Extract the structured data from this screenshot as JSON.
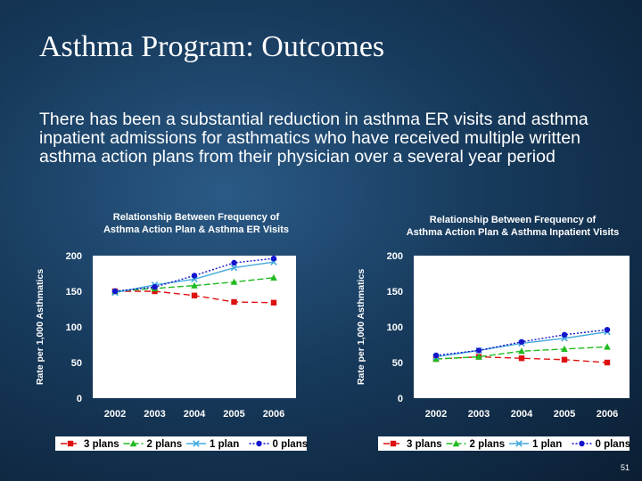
{
  "slide": {
    "title": "Asthma Program: Outcomes",
    "intro": "There has been a substantial reduction in asthma ER visits and asthma inpatient admissions for asthmatics who have received multiple written asthma action plans from their physician over a several year period",
    "page_number": "51"
  },
  "colors": {
    "3 plans": "#dd1111",
    "2 plans": "#20bb20",
    "1 plan": "#44aadd",
    "0 plans": "#1414cc"
  },
  "chart_data": [
    {
      "type": "line",
      "title_lines": [
        "Relationship Between Frequency of",
        "Asthma Action Plan & Asthma ER Visits"
      ],
      "ylabel": "Rate per 1,000 Asthmatics",
      "xlabel": "",
      "categories": [
        "2002",
        "2003",
        "2004",
        "2005",
        "2006"
      ],
      "ylim": [
        0,
        200
      ],
      "yticks": [
        0,
        50,
        100,
        150,
        200
      ],
      "grid": false,
      "legend": "bottom",
      "series": [
        {
          "name": "3 plans",
          "marker": "square",
          "values": [
            150,
            150,
            144,
            135,
            134
          ]
        },
        {
          "name": "2 plans",
          "marker": "triangle",
          "values": [
            150,
            154,
            158,
            163,
            169
          ]
        },
        {
          "name": "1 plan",
          "marker": "x",
          "values": [
            148,
            159,
            167,
            183,
            191
          ]
        },
        {
          "name": "0 plans",
          "marker": "circle",
          "values": [
            150,
            156,
            172,
            190,
            196
          ]
        }
      ]
    },
    {
      "type": "line",
      "title_lines": [
        "Relationship Between Frequency of",
        "Asthma Action Plan & Asthma Inpatient Visits"
      ],
      "ylabel": "Rate per 1,000 Asthmatics",
      "xlabel": "",
      "categories": [
        "2002",
        "2003",
        "2004",
        "2005",
        "2006"
      ],
      "ylim": [
        0,
        200
      ],
      "yticks": [
        0,
        50,
        100,
        150,
        200
      ],
      "grid": false,
      "legend": "bottom",
      "series": [
        {
          "name": "3 plans",
          "marker": "square",
          "values": [
            55,
            58,
            56,
            54,
            50
          ]
        },
        {
          "name": "2 plans",
          "marker": "triangle",
          "values": [
            55,
            58,
            66,
            69,
            72
          ]
        },
        {
          "name": "1 plan",
          "marker": "x",
          "values": [
            58,
            67,
            77,
            84,
            93
          ]
        },
        {
          "name": "0 plans",
          "marker": "circle",
          "values": [
            60,
            67,
            79,
            89,
            96
          ]
        }
      ]
    }
  ]
}
